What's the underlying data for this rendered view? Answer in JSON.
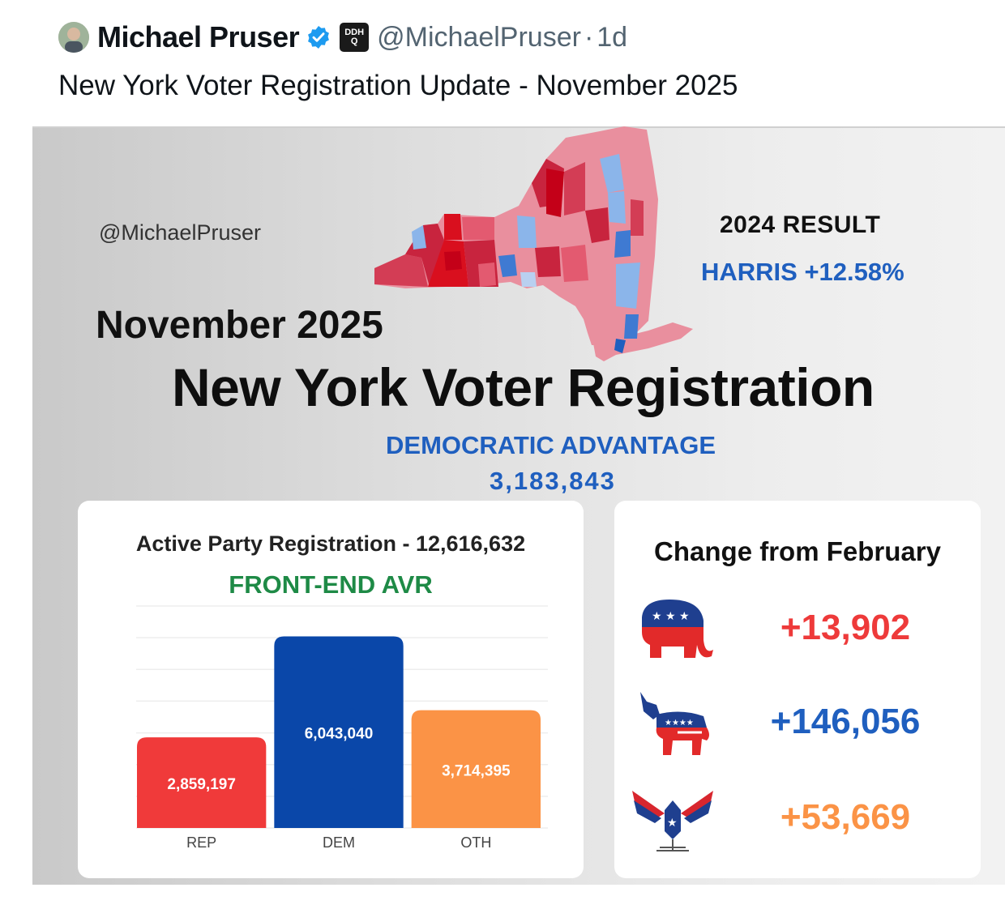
{
  "tweet": {
    "author_name": "Michael Pruser",
    "affiliation_badge": "DDHQ",
    "handle": "@MichaelPruser",
    "time": "1d",
    "text": "New York Voter Registration Update - November 2025"
  },
  "card": {
    "watermark": "@MichaelPruser",
    "result_title": "2024 RESULT",
    "result_value": "HARRIS +12.58%",
    "month": "November 2025",
    "title": "New York Voter Registration",
    "advantage_label": "DEMOCRATIC ADVANTAGE",
    "advantage_value": "3,183,843"
  },
  "chart_data": {
    "type": "bar",
    "title": "Active Party Registration - 12,616,632",
    "subtitle": "FRONT-END AVR",
    "categories": [
      "REP",
      "DEM",
      "OTH"
    ],
    "values": [
      2859197,
      6043040,
      3714395
    ],
    "value_labels": [
      "2,859,197",
      "6,043,040",
      "3,714,395"
    ],
    "colors": [
      "#f03a3a",
      "#0a47a9",
      "#fb9346"
    ],
    "ylim": [
      0,
      7000000
    ],
    "grid": true
  },
  "changes": {
    "title": "Change from February",
    "items": [
      {
        "party": "republican",
        "icon": "elephant-icon",
        "value": "+13,902",
        "color": "#ee3a3a"
      },
      {
        "party": "democrat",
        "icon": "donkey-icon",
        "value": "+146,056",
        "color": "#1f5fbf"
      },
      {
        "party": "other",
        "icon": "eagle-icon",
        "value": "+53,669",
        "color": "#fb9346"
      }
    ]
  }
}
